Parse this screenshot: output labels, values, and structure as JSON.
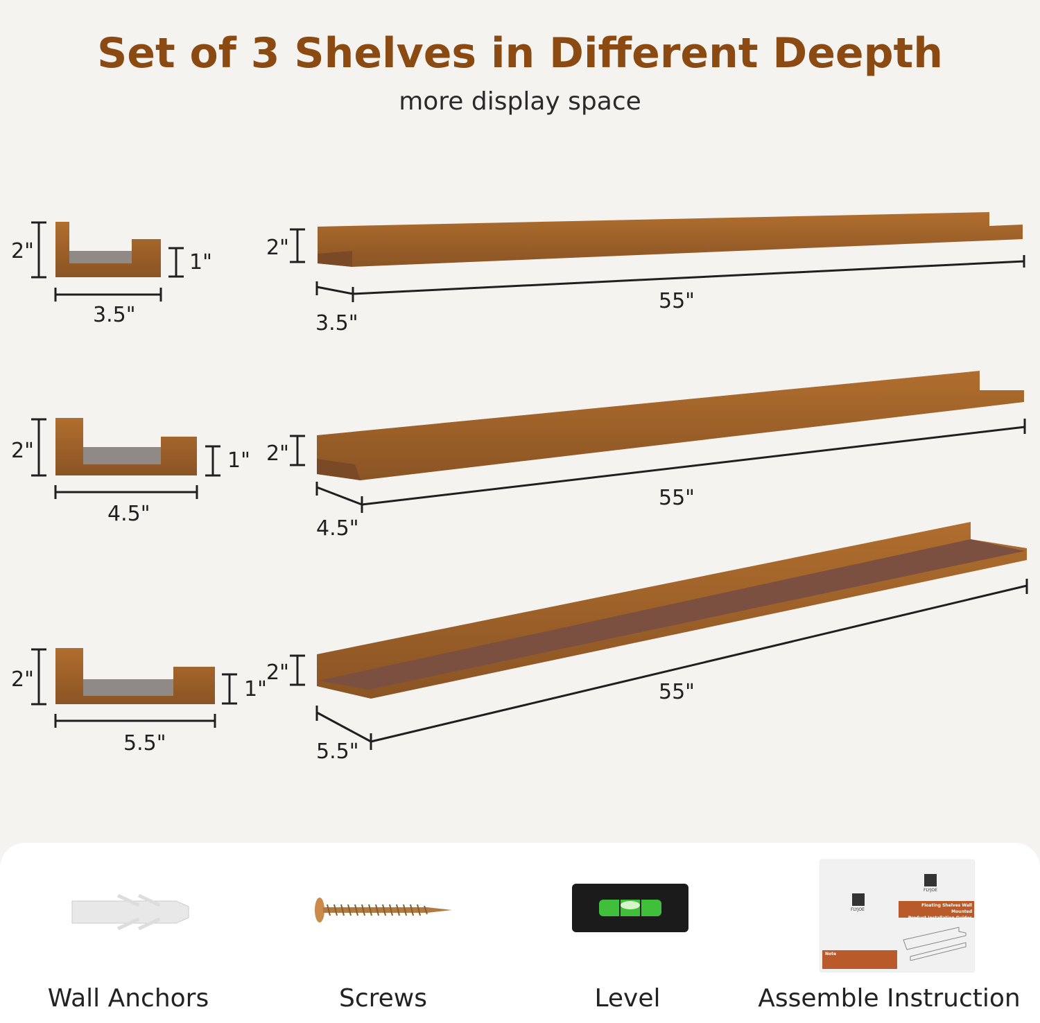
{
  "header": {
    "title": "Set of 3 Shelves in Different Deepth",
    "subtitle": "more display space"
  },
  "colors": {
    "title": "#8b4a12",
    "wood": "#a0622a",
    "wood_dark": "#7a4a26",
    "background": "#f4f3ef"
  },
  "shelves": [
    {
      "height": "2\"",
      "lip": "1\"",
      "depth": "3.5\"",
      "length": "55\""
    },
    {
      "height": "2\"",
      "lip": "1\"",
      "depth": "4.5\"",
      "length": "55\""
    },
    {
      "height": "2\"",
      "lip": "1\"",
      "depth": "5.5\"",
      "length": "55\""
    }
  ],
  "accessories": [
    {
      "label": "Wall Anchors",
      "icon": "wall-anchor-icon"
    },
    {
      "label": "Screws",
      "icon": "screw-icon"
    },
    {
      "label": "Level",
      "icon": "level-icon"
    },
    {
      "label": "Assemble Instruction",
      "icon": "manual-icon"
    }
  ],
  "manual": {
    "brand": "FLYJOE",
    "title_line1": "Floating Shelves Wall Mounted",
    "title_line2": "Product Installation Guides",
    "note": "Note"
  }
}
